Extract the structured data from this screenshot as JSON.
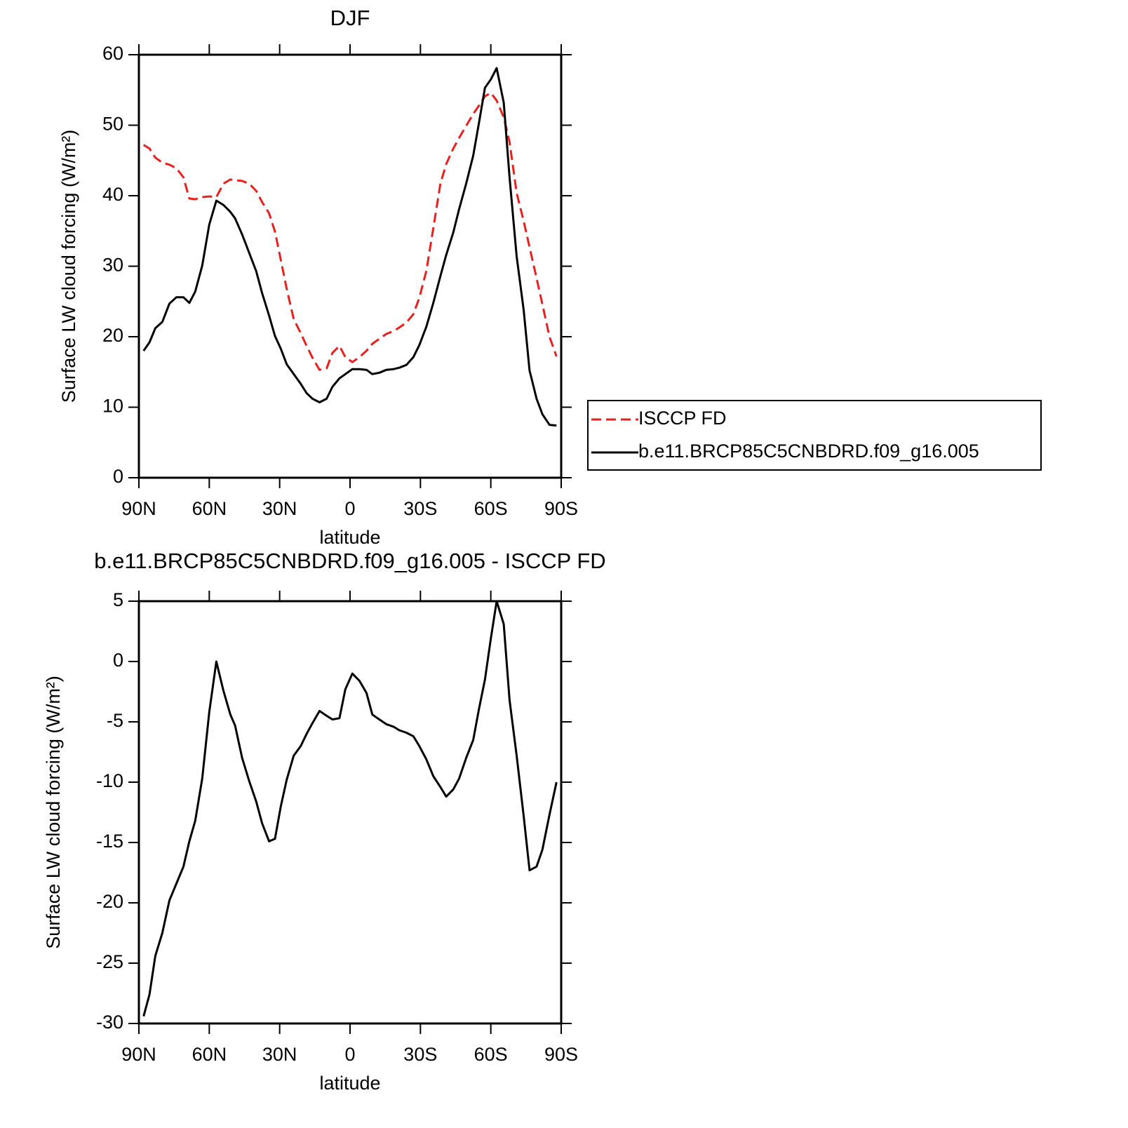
{
  "chart_data": [
    {
      "type": "line",
      "title": "DJF",
      "xlabel": "latitude",
      "ylabel": "Surface LW cloud forcing (W/m²)",
      "x": [
        88,
        85.5,
        83,
        80,
        77,
        74,
        71,
        68.5,
        66,
        63,
        60,
        57,
        54,
        51,
        49,
        46,
        43,
        40,
        37.5,
        34.5,
        32,
        29.5,
        27,
        24,
        21,
        18.5,
        16,
        13,
        10,
        7.5,
        4.5,
        2,
        -1,
        -4,
        -7,
        -9.5,
        -12.5,
        -15.5,
        -18.5,
        -21,
        -24,
        -27,
        -29.5,
        -32.5,
        -35.5,
        -38.5,
        -41,
        -44,
        -46.5,
        -49.5,
        -52.5,
        -55,
        -57.5,
        -60,
        -62.5,
        -65.5,
        -68,
        -71,
        -74,
        -76.5,
        -79.5,
        -82,
        -85,
        -88
      ],
      "series": [
        {
          "name": "ISCCP FD",
          "color": "#e8201e",
          "dashed": true,
          "values": [
            47.2,
            46.7,
            45.4,
            44.7,
            44.4,
            43.9,
            42.6,
            39.6,
            39.5,
            39.8,
            39.9,
            39.8,
            41.7,
            42.3,
            42.2,
            42.1,
            41.7,
            40.7,
            39.1,
            37.5,
            34.9,
            30.9,
            26.8,
            22.5,
            20.5,
            18.7,
            17.0,
            15.3,
            15.5,
            17.7,
            18.7,
            17.1,
            16.4,
            17.1,
            18.0,
            19.0,
            19.7,
            20.4,
            20.8,
            21.3,
            22.0,
            23.2,
            25.5,
            29.3,
            35.4,
            41.7,
            44.5,
            46.7,
            48.2,
            49.9,
            51.6,
            52.8,
            54.1,
            54.6,
            53.5,
            51.1,
            47.6,
            40.4,
            36.4,
            32.7,
            28.3,
            24.6,
            20.0,
            17.2
          ]
        },
        {
          "name": "b.e11.BRCP85C5CNBDRD.f09_g16.005",
          "color": "#000000",
          "dashed": false,
          "values": [
            18.0,
            19.2,
            21.2,
            22.1,
            24.7,
            25.6,
            25.6,
            24.8,
            26.4,
            30.1,
            35.9,
            39.3,
            38.7,
            37.7,
            36.8,
            34.5,
            31.9,
            29.3,
            26.2,
            23.0,
            20.1,
            18.3,
            16.1,
            14.7,
            13.3,
            12.0,
            11.2,
            10.7,
            11.2,
            12.9,
            14.1,
            14.7,
            15.4,
            15.4,
            15.3,
            14.7,
            14.9,
            15.3,
            15.4,
            15.6,
            16.0,
            17.1,
            18.8,
            21.4,
            24.8,
            28.6,
            31.6,
            34.8,
            38.1,
            41.7,
            45.7,
            50.4,
            55.3,
            56.5,
            58.1,
            53.2,
            42.6,
            31.4,
            23.8,
            15.2,
            11.2,
            9.0,
            7.5,
            7.4
          ]
        }
      ],
      "xlim": [
        90,
        -90
      ],
      "xticks": [
        {
          "value": 90,
          "label": "90N"
        },
        {
          "value": 60,
          "label": "60N"
        },
        {
          "value": 30,
          "label": "30N"
        },
        0,
        {
          "value": -30,
          "label": "30S"
        },
        {
          "value": -60,
          "label": "60S"
        },
        {
          "value": -90,
          "label": "90S"
        }
      ],
      "ylim": [
        0,
        60
      ],
      "yticks": [
        0,
        10,
        20,
        30,
        40,
        50,
        60
      ],
      "legend": true
    },
    {
      "type": "line",
      "title": "b.e11.BRCP85C5CNBDRD.f09_g16.005 - ISCCP FD",
      "xlabel": "latitude",
      "ylabel": "Surface LW cloud forcing (W/m²)",
      "x": [
        88,
        85.5,
        83,
        80,
        77,
        74,
        71,
        68.5,
        66,
        63,
        60,
        57,
        54,
        51,
        49,
        46,
        43,
        40,
        37.5,
        34.5,
        32,
        29.5,
        27,
        24,
        21,
        18.5,
        16,
        13,
        10,
        7.5,
        4.5,
        2,
        -1,
        -4,
        -7,
        -9.5,
        -12.5,
        -15.5,
        -18.5,
        -21,
        -24,
        -27,
        -29.5,
        -32.5,
        -35.5,
        -38.5,
        -41,
        -44,
        -46.5,
        -49.5,
        -52.5,
        -55,
        -57.5,
        -60,
        -62.5,
        -65.5,
        -68,
        -71,
        -74,
        -76.5,
        -79.5,
        -82,
        -85,
        -88
      ],
      "series": [
        {
          "color": "#000000",
          "dashed": false,
          "values": [
            -29.4,
            -27.6,
            -24.4,
            -22.5,
            -19.8,
            -18.4,
            -17.0,
            -14.9,
            -13.2,
            -9.7,
            -4.2,
            0.0,
            -2.4,
            -4.4,
            -5.3,
            -8.0,
            -9.9,
            -11.6,
            -13.4,
            -14.9,
            -14.7,
            -12.0,
            -9.8,
            -7.8,
            -7.0,
            -6.0,
            -5.1,
            -4.1,
            -4.5,
            -4.8,
            -4.7,
            -2.3,
            -1.0,
            -1.6,
            -2.6,
            -4.4,
            -4.8,
            -5.2,
            -5.4,
            -5.7,
            -5.9,
            -6.2,
            -7.0,
            -8.1,
            -9.5,
            -10.4,
            -11.2,
            -10.6,
            -9.7,
            -8.0,
            -6.5,
            -3.9,
            -1.5,
            1.9,
            5.0,
            3.1,
            -3.2,
            -7.8,
            -12.8,
            -17.3,
            -17.0,
            -15.6,
            -12.7,
            -10.0
          ]
        }
      ],
      "xlim": [
        90,
        -90
      ],
      "xticks": [
        {
          "value": 90,
          "label": "90N"
        },
        {
          "value": 60,
          "label": "60N"
        },
        {
          "value": 30,
          "label": "30N"
        },
        0,
        {
          "value": -30,
          "label": "30S"
        },
        {
          "value": -60,
          "label": "60S"
        },
        {
          "value": -90,
          "label": "90S"
        }
      ],
      "ylim": [
        -30,
        5
      ],
      "yticks": [
        -30,
        -25,
        -20,
        -15,
        -10,
        -5,
        0,
        5
      ],
      "legend": false
    }
  ]
}
